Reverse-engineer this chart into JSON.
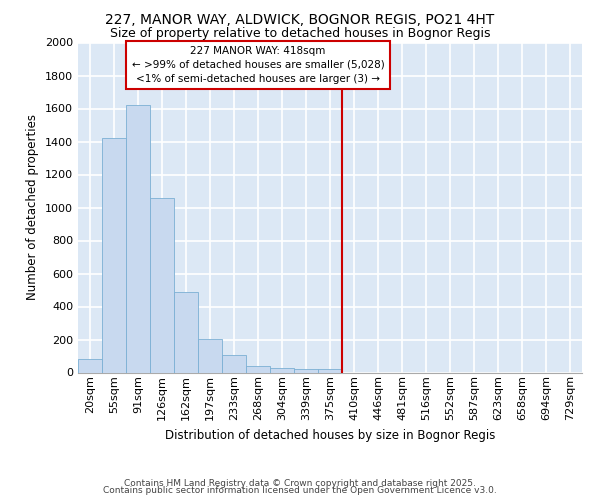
{
  "title": "227, MANOR WAY, ALDWICK, BOGNOR REGIS, PO21 4HT",
  "subtitle": "Size of property relative to detached houses in Bognor Regis",
  "xlabel": "Distribution of detached houses by size in Bognor Regis",
  "ylabel": "Number of detached properties",
  "bar_values": [
    80,
    1420,
    1620,
    1060,
    490,
    205,
    105,
    40,
    30,
    20,
    20,
    0,
    0,
    0,
    0,
    0,
    0,
    0,
    0,
    0,
    0
  ],
  "categories": [
    "20sqm",
    "55sqm",
    "91sqm",
    "126sqm",
    "162sqm",
    "197sqm",
    "233sqm",
    "268sqm",
    "304sqm",
    "339sqm",
    "375sqm",
    "410sqm",
    "446sqm",
    "481sqm",
    "516sqm",
    "552sqm",
    "587sqm",
    "623sqm",
    "658sqm",
    "694sqm",
    "729sqm"
  ],
  "bar_color": "#c8d9ef",
  "bar_edge_color": "#7bafd4",
  "plot_bg_color": "#dce8f5",
  "fig_bg_color": "#ffffff",
  "grid_color": "#ffffff",
  "vline_color": "#cc0000",
  "vline_x": 10.5,
  "annotation_title": "227 MANOR WAY: 418sqm",
  "annotation_line1": "← >99% of detached houses are smaller (5,028)",
  "annotation_line2": "<1% of semi-detached houses are larger (3) →",
  "annotation_box_color": "#cc0000",
  "ylim": [
    0,
    2000
  ],
  "yticks": [
    0,
    200,
    400,
    600,
    800,
    1000,
    1200,
    1400,
    1600,
    1800,
    2000
  ],
  "footer1": "Contains HM Land Registry data © Crown copyright and database right 2025.",
  "footer2": "Contains public sector information licensed under the Open Government Licence v3.0.",
  "title_fontsize": 10,
  "subtitle_fontsize": 9,
  "axis_label_fontsize": 8.5,
  "tick_fontsize": 8,
  "footer_fontsize": 6.5
}
